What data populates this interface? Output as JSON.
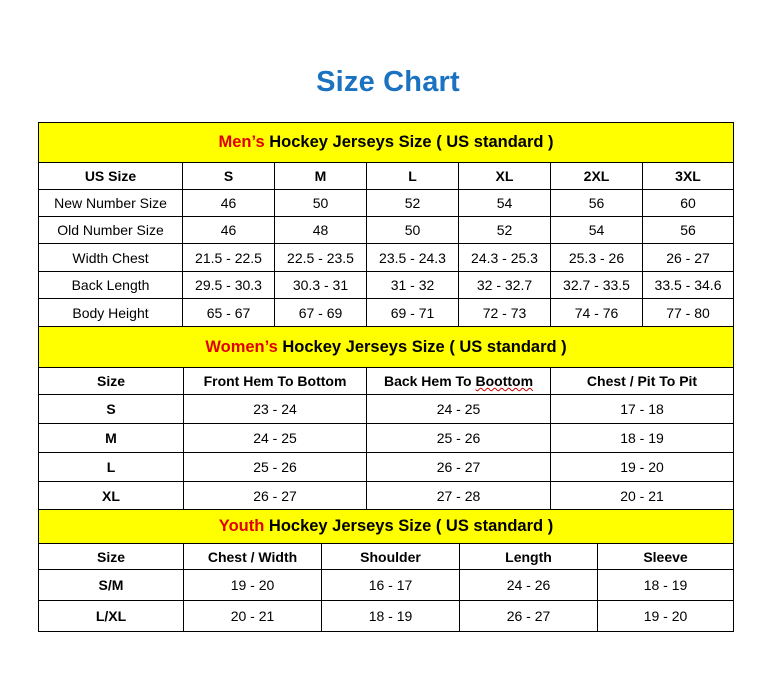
{
  "title": "Size Chart",
  "colors": {
    "title": "#1a72c0",
    "band": "#ffff00",
    "highlight": "#e00000"
  },
  "men": {
    "band_highlight": "Men’s",
    "band_rest": " Hockey Jerseys Size ( US standard )",
    "headers": [
      "US Size",
      "S",
      "M",
      "L",
      "XL",
      "2XL",
      "3XL"
    ],
    "rows": [
      [
        "New Number Size",
        "46",
        "50",
        "52",
        "54",
        "56",
        "60"
      ],
      [
        "Old Number Size",
        "46",
        "48",
        "50",
        "52",
        "54",
        "56"
      ],
      [
        "Width Chest",
        "21.5 - 22.5",
        "22.5 - 23.5",
        "23.5 - 24.3",
        "24.3 - 25.3",
        "25.3 - 26",
        "26 - 27"
      ],
      [
        "Back Length",
        "29.5 - 30.3",
        "30.3 - 31",
        "31 - 32",
        "32 - 32.7",
        "32.7 - 33.5",
        "33.5 - 34.6"
      ],
      [
        "Body Height",
        "65 - 67",
        "67 - 69",
        "69 - 71",
        "72 - 73",
        "74 - 76",
        "77 - 80"
      ]
    ]
  },
  "women": {
    "band_highlight": "Women’s",
    "band_rest": " Hockey Jerseys Size ( US standard )",
    "headers": [
      "Size",
      "Front Hem To Bottom",
      "Back Hem To Boottom",
      "Chest / Pit To Pit"
    ],
    "rows": [
      [
        "S",
        "23 - 24",
        "24 - 25",
        "17 - 18"
      ],
      [
        "M",
        "24 - 25",
        "25 - 26",
        "18 - 19"
      ],
      [
        "L",
        "25 - 26",
        "26 - 27",
        "19 - 20"
      ],
      [
        "XL",
        "26 - 27",
        "27 - 28",
        "20 - 21"
      ]
    ]
  },
  "youth": {
    "band_highlight": "Youth",
    "band_rest": " Hockey Jerseys Size ( US standard )",
    "headers": [
      "Size",
      "Chest / Width",
      "Shoulder",
      "Length",
      "Sleeve"
    ],
    "rows": [
      [
        "S/M",
        "19 - 20",
        "16 - 17",
        "24 - 26",
        "18 - 19"
      ],
      [
        "L/XL",
        "20 - 21",
        "18 - 19",
        "26 - 27",
        "19 - 20"
      ]
    ]
  }
}
